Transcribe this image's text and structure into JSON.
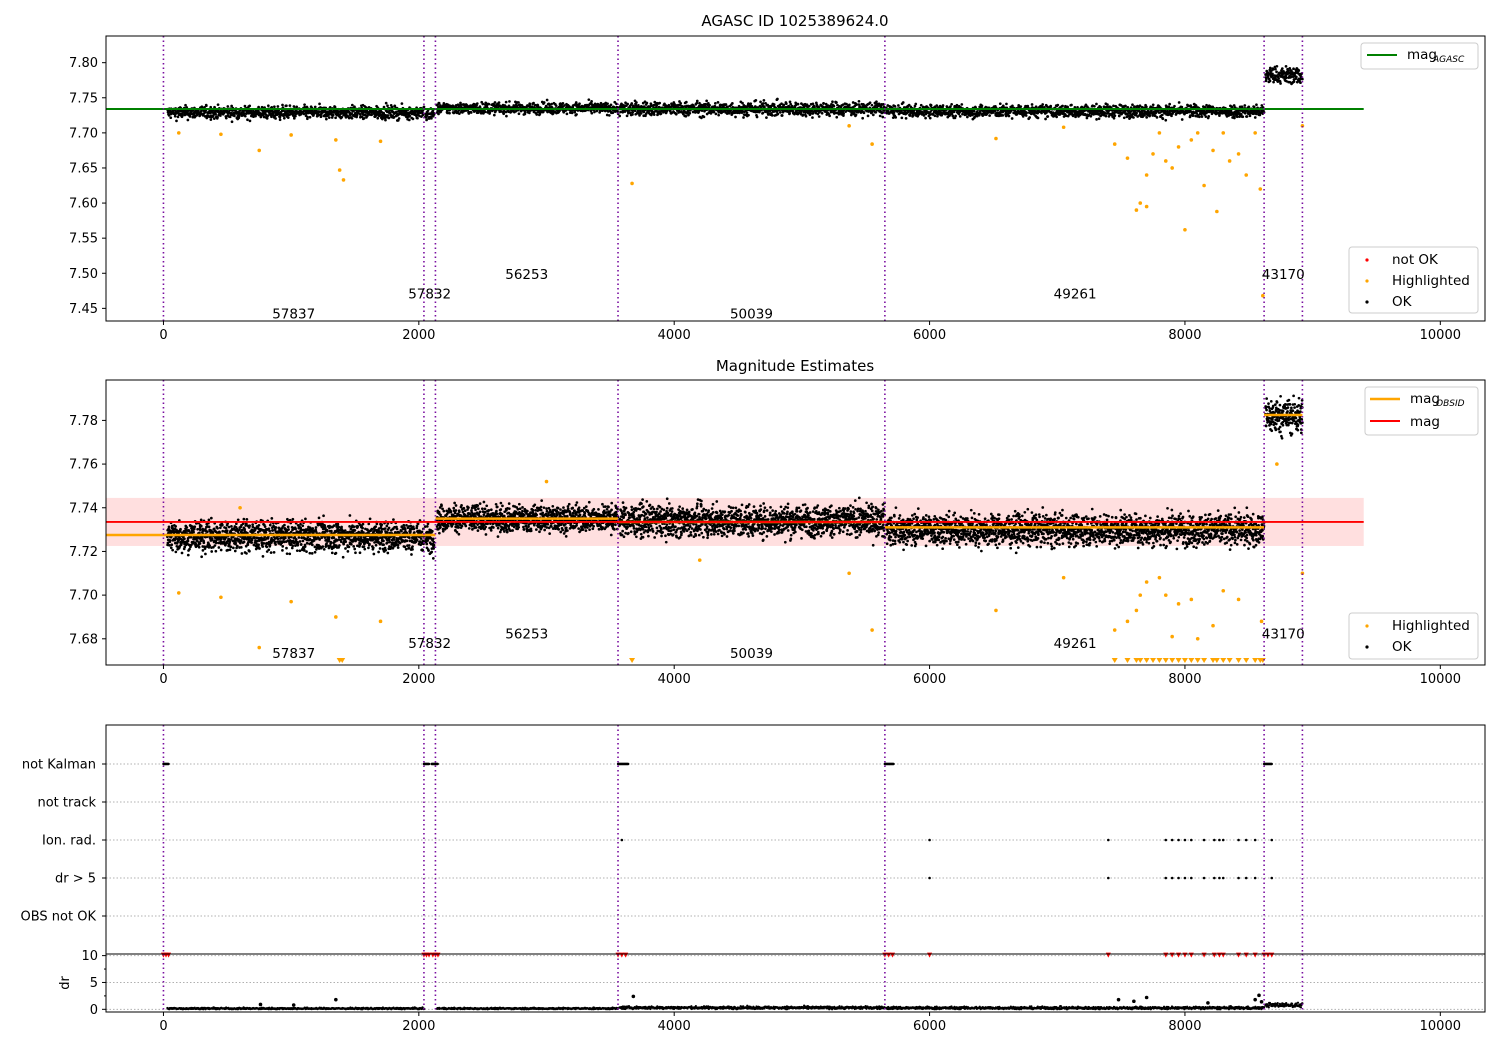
{
  "chart_data": [
    {
      "type": "scatter",
      "title": "AGASC ID 1025389624.0",
      "xlim": [
        -450,
        10350
      ],
      "ylim": [
        7.432,
        7.838
      ],
      "xticks": [
        0,
        2000,
        4000,
        6000,
        8000,
        10000
      ],
      "yticks": [
        7.45,
        7.5,
        7.55,
        7.6,
        7.65,
        7.7,
        7.75,
        7.8
      ],
      "grid": false,
      "legend_top": {
        "placement": "top-right",
        "entries": [
          {
            "label": "mag",
            "subscript": "AGASC",
            "color": "#008000",
            "kind": "line"
          }
        ]
      },
      "legend_bottom": {
        "placement": "bottom-right",
        "entries": [
          {
            "label": "not OK",
            "color": "#ff0000",
            "kind": "point"
          },
          {
            "label": "Highlighted",
            "color": "#ffa500",
            "kind": "point"
          },
          {
            "label": "OK",
            "color": "#000000",
            "kind": "point"
          }
        ]
      },
      "reference_line": {
        "name": "mag_AGASC",
        "y": 7.734,
        "x_range": [
          -450,
          9400
        ],
        "color": "#008000"
      },
      "obsid_boundaries": [
        0,
        2040,
        2130,
        3560,
        5650,
        8620,
        8920
      ],
      "obsid_labels": [
        {
          "text": "57837",
          "x": 1020,
          "y": 7.443
        },
        {
          "text": "57832",
          "x": 2085,
          "y": 7.471
        },
        {
          "text": "56253",
          "x": 2845,
          "y": 7.499
        },
        {
          "text": "50039",
          "x": 4605,
          "y": 7.443
        },
        {
          "text": "49261",
          "x": 7140,
          "y": 7.471
        },
        {
          "text": "43170",
          "x": 8770,
          "y": 7.499
        }
      ],
      "segments": [
        {
          "x0": 30,
          "x1": 2040,
          "mean": 7.729,
          "spread": 0.009
        },
        {
          "x0": 2050,
          "x1": 2120,
          "mean": 7.726,
          "spread": 0.008
        },
        {
          "x0": 2140,
          "x1": 3560,
          "mean": 7.735,
          "spread": 0.008
        },
        {
          "x0": 3570,
          "x1": 5650,
          "mean": 7.734,
          "spread": 0.01
        },
        {
          "x0": 5660,
          "x1": 8620,
          "mean": 7.731,
          "spread": 0.009
        },
        {
          "x0": 8630,
          "x1": 8920,
          "mean": 7.782,
          "spread": 0.012
        }
      ],
      "highlighted_points": [
        [
          120,
          7.7
        ],
        [
          450,
          7.698
        ],
        [
          750,
          7.675
        ],
        [
          1000,
          7.697
        ],
        [
          1350,
          7.69
        ],
        [
          1380,
          7.647
        ],
        [
          1410,
          7.633
        ],
        [
          1700,
          7.688
        ],
        [
          3670,
          7.628
        ],
        [
          5370,
          7.71
        ],
        [
          5550,
          7.684
        ],
        [
          6520,
          7.692
        ],
        [
          7050,
          7.708
        ],
        [
          7450,
          7.684
        ],
        [
          7550,
          7.664
        ],
        [
          7620,
          7.59
        ],
        [
          7650,
          7.6
        ],
        [
          7700,
          7.595
        ],
        [
          7700,
          7.64
        ],
        [
          7750,
          7.67
        ],
        [
          7800,
          7.7
        ],
        [
          7850,
          7.66
        ],
        [
          7900,
          7.65
        ],
        [
          7950,
          7.68
        ],
        [
          8000,
          7.562
        ],
        [
          8050,
          7.69
        ],
        [
          8100,
          7.7
        ],
        [
          8150,
          7.625
        ],
        [
          8220,
          7.675
        ],
        [
          8250,
          7.588
        ],
        [
          8300,
          7.7
        ],
        [
          8350,
          7.66
        ],
        [
          8420,
          7.67
        ],
        [
          8480,
          7.64
        ],
        [
          8550,
          7.7
        ],
        [
          8590,
          7.62
        ],
        [
          8610,
          7.468
        ],
        [
          8920,
          7.71
        ]
      ]
    },
    {
      "type": "scatter",
      "title": "Magnitude Estimates",
      "xlim": [
        -450,
        10350
      ],
      "ylim": [
        7.668,
        7.7985
      ],
      "xticks": [
        0,
        2000,
        4000,
        6000,
        8000,
        10000
      ],
      "yticks": [
        7.68,
        7.7,
        7.72,
        7.74,
        7.76,
        7.78
      ],
      "grid": false,
      "legend_top": {
        "placement": "top-right",
        "entries": [
          {
            "label": "mag",
            "subscript": "OBSID",
            "color": "#ffa500",
            "kind": "line"
          },
          {
            "label": "mag",
            "subscript": "",
            "color": "#ff0000",
            "kind": "line"
          }
        ]
      },
      "legend_bottom": {
        "placement": "bottom-right",
        "entries": [
          {
            "label": "Highlighted",
            "color": "#ffa500",
            "kind": "point"
          },
          {
            "label": "OK",
            "color": "#000000",
            "kind": "point"
          }
        ]
      },
      "mag_line": {
        "y": 7.7335,
        "x_range": [
          -450,
          9400
        ],
        "color": "#ff0000"
      },
      "mag_band": {
        "y0": 7.7225,
        "y1": 7.7445,
        "x_range": [
          -450,
          9400
        ],
        "color": "#ffc0c0"
      },
      "obsid_means": [
        {
          "x0": -450,
          "x1": 2130,
          "y": 7.7275
        },
        {
          "x0": 2130,
          "x1": 3560,
          "y": 7.735
        },
        {
          "x0": 3560,
          "x1": 5650,
          "y": 7.7335
        },
        {
          "x0": 5650,
          "x1": 8620,
          "y": 7.731
        },
        {
          "x0": 8620,
          "x1": 8920,
          "y": 7.7825
        }
      ],
      "obsid_boundaries": [
        0,
        2040,
        2130,
        3560,
        5650,
        8620,
        8920
      ],
      "obsid_labels": [
        {
          "text": "57837",
          "x": 1020,
          "y": 7.6735
        },
        {
          "text": "57832",
          "x": 2085,
          "y": 7.678
        },
        {
          "text": "56253",
          "x": 2845,
          "y": 7.6825
        },
        {
          "text": "50039",
          "x": 4605,
          "y": 7.6735
        },
        {
          "text": "49261",
          "x": 7140,
          "y": 7.678
        },
        {
          "text": "43170",
          "x": 8770,
          "y": 7.6825
        }
      ],
      "segments": [
        {
          "x0": 30,
          "x1": 2040,
          "mean": 7.727,
          "spread": 0.007
        },
        {
          "x0": 2050,
          "x1": 2120,
          "mean": 7.726,
          "spread": 0.006
        },
        {
          "x0": 2140,
          "x1": 3560,
          "mean": 7.735,
          "spread": 0.006
        },
        {
          "x0": 3570,
          "x1": 5650,
          "mean": 7.734,
          "spread": 0.007
        },
        {
          "x0": 5660,
          "x1": 8620,
          "mean": 7.73,
          "spread": 0.007
        },
        {
          "x0": 8630,
          "x1": 8920,
          "mean": 7.782,
          "spread": 0.008
        }
      ],
      "highlighted_points": [
        [
          120,
          7.701
        ],
        [
          450,
          7.699
        ],
        [
          750,
          7.676
        ],
        [
          1000,
          7.697
        ],
        [
          1350,
          7.69
        ],
        [
          1700,
          7.688
        ],
        [
          5370,
          7.71
        ],
        [
          5550,
          7.684
        ],
        [
          6520,
          7.693
        ],
        [
          7050,
          7.708
        ],
        [
          7450,
          7.684
        ],
        [
          7550,
          7.688
        ],
        [
          7620,
          7.693
        ],
        [
          7650,
          7.7
        ],
        [
          7700,
          7.706
        ],
        [
          7800,
          7.708
        ],
        [
          7850,
          7.7
        ],
        [
          7900,
          7.681
        ],
        [
          7950,
          7.696
        ],
        [
          8050,
          7.698
        ],
        [
          8100,
          7.68
        ],
        [
          8220,
          7.686
        ],
        [
          8300,
          7.702
        ],
        [
          8420,
          7.698
        ],
        [
          8600,
          7.688
        ],
        [
          8920,
          7.71
        ],
        [
          8720,
          7.76
        ],
        [
          600,
          7.74
        ],
        [
          3000,
          7.752
        ],
        [
          4200,
          7.716
        ]
      ],
      "clipped_markers_x": [
        1380,
        1400,
        3670,
        7450,
        7550,
        7620,
        7650,
        7700,
        7750,
        7800,
        7850,
        7900,
        7950,
        8000,
        8050,
        8100,
        8150,
        8220,
        8250,
        8300,
        8350,
        8420,
        8480,
        8550,
        8590,
        8610
      ]
    },
    {
      "type": "scatter",
      "title": "",
      "xlim": [
        -450,
        10350
      ],
      "categories": [
        "not Kalman",
        "not track",
        "Ion. rad.",
        "dr > 5",
        "OBS not OK"
      ],
      "flag_points": {
        "not Kalman": [
          [
            0,
            40
          ],
          [
            2040,
            2080
          ],
          [
            2100,
            2150
          ],
          [
            3560,
            3640
          ],
          [
            5650,
            5720
          ],
          [
            8620,
            8680
          ]
        ],
        "Ion. rad.": [
          3590,
          6000,
          7400,
          7850,
          7900,
          7950,
          8000,
          8050,
          8150,
          8230,
          8270,
          8300,
          8420,
          8480,
          8550,
          8680
        ],
        "dr > 5": [
          6000,
          7400,
          7850,
          7900,
          7950,
          8000,
          8050,
          8150,
          8230,
          8270,
          8300,
          8420,
          8480,
          8550,
          8680
        ]
      },
      "obsid_boundaries": [
        0,
        2040,
        2130,
        3560,
        5650,
        8620,
        8920
      ]
    },
    {
      "type": "scatter",
      "title": "",
      "ylabel": "dr",
      "xlim": [
        -450,
        10350
      ],
      "ylim": [
        -0.5,
        10.3
      ],
      "xticks": [
        0,
        2000,
        4000,
        6000,
        8000,
        10000
      ],
      "yticks": [
        0,
        5,
        10
      ],
      "clip_value": 10,
      "clipped_markers_x": [
        0,
        20,
        40,
        2040,
        2060,
        2080,
        2110,
        2130,
        2150,
        3560,
        3590,
        3620,
        5650,
        5680,
        5710,
        6000,
        7400,
        7850,
        7900,
        7950,
        8000,
        8050,
        8150,
        8230,
        8270,
        8300,
        8420,
        8480,
        8550,
        8620,
        8650,
        8680
      ],
      "segments": [
        {
          "x0": 30,
          "x1": 2040,
          "mean": 0.15,
          "spread": 0.15
        },
        {
          "x0": 2140,
          "x1": 3560,
          "mean": 0.15,
          "spread": 0.15
        },
        {
          "x0": 3570,
          "x1": 5650,
          "mean": 0.3,
          "spread": 0.25
        },
        {
          "x0": 5660,
          "x1": 8620,
          "mean": 0.25,
          "spread": 0.25
        },
        {
          "x0": 8630,
          "x1": 8920,
          "mean": 0.8,
          "spread": 0.4
        }
      ],
      "outlier_points": [
        [
          760,
          0.9
        ],
        [
          1020,
          0.8
        ],
        [
          1350,
          1.8
        ],
        [
          3680,
          2.4
        ],
        [
          7480,
          1.8
        ],
        [
          7600,
          1.5
        ],
        [
          7700,
          2.2
        ],
        [
          8180,
          1.2
        ],
        [
          8550,
          1.8
        ],
        [
          8580,
          2.6
        ],
        [
          8600,
          1.4
        ]
      ],
      "obsid_boundaries": [
        0,
        2040,
        2130,
        3560,
        5650,
        8620,
        8920
      ]
    }
  ]
}
